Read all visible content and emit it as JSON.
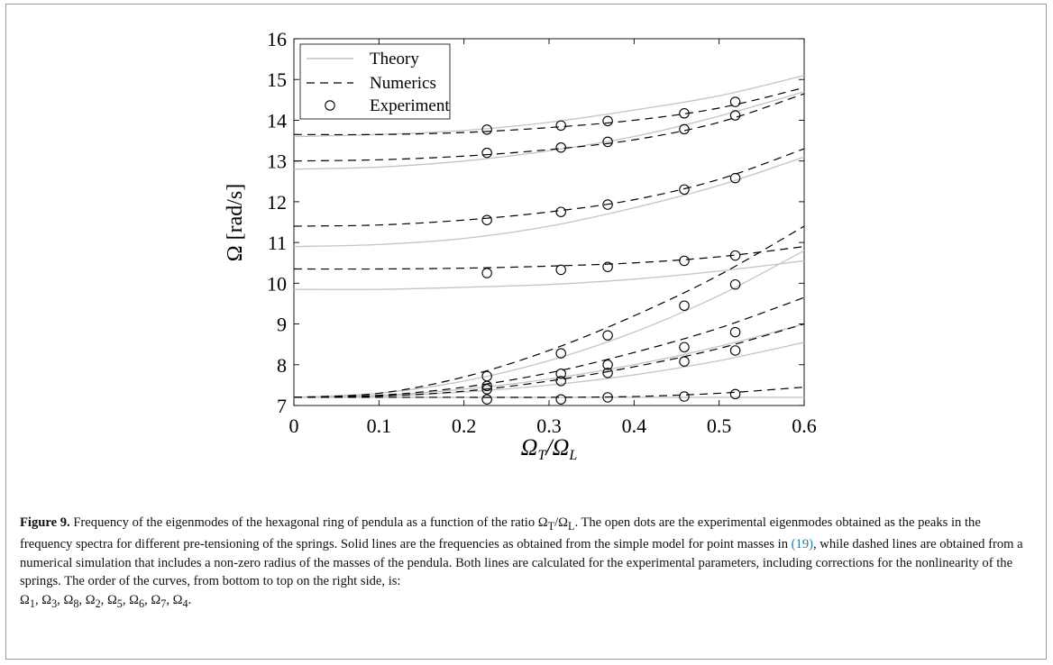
{
  "chart_data": {
    "type": "line",
    "xlabel": "Ω_T/Ω_L",
    "ylabel": "Ω [rad/s]",
    "xlim": [
      0,
      0.6
    ],
    "ylim": [
      7,
      16
    ],
    "xticks": [
      0,
      0.1,
      0.2,
      0.3,
      0.4,
      0.5,
      0.6
    ],
    "yticks": [
      7,
      8,
      9,
      10,
      11,
      12,
      13,
      14,
      15,
      16
    ],
    "grid": false,
    "legend_position": "top-left",
    "legend": [
      {
        "label": "Theory",
        "style": "solid",
        "color": "#c4c4c4"
      },
      {
        "label": "Numerics",
        "style": "dashed",
        "color": "#000000"
      },
      {
        "label": "Experiment",
        "style": "circle",
        "color": "#000000"
      }
    ],
    "theory_curves": [
      {
        "x": [
          0,
          0.1,
          0.2,
          0.3,
          0.4,
          0.5,
          0.6
        ],
        "y": [
          7.2,
          7.2,
          7.2,
          7.2,
          7.2,
          7.2,
          7.2
        ]
      },
      {
        "x": [
          0,
          0.1,
          0.2,
          0.3,
          0.4,
          0.5,
          0.6
        ],
        "y": [
          7.2,
          7.23,
          7.33,
          7.5,
          7.75,
          8.1,
          8.55
        ]
      },
      {
        "x": [
          0,
          0.1,
          0.2,
          0.3,
          0.4,
          0.5,
          0.6
        ],
        "y": [
          7.2,
          7.25,
          7.4,
          7.65,
          8.0,
          8.45,
          9.0
        ]
      },
      {
        "x": [
          0,
          0.1,
          0.2,
          0.3,
          0.4,
          0.5,
          0.6
        ],
        "y": [
          7.2,
          7.3,
          7.6,
          8.1,
          8.8,
          9.7,
          10.8
        ]
      },
      {
        "x": [
          0,
          0.1,
          0.2,
          0.3,
          0.4,
          0.5,
          0.6
        ],
        "y": [
          9.85,
          9.85,
          9.9,
          9.97,
          10.1,
          10.3,
          10.55
        ]
      },
      {
        "x": [
          0,
          0.1,
          0.2,
          0.3,
          0.4,
          0.5,
          0.6
        ],
        "y": [
          10.9,
          10.95,
          11.1,
          11.4,
          11.85,
          12.4,
          13.1
        ]
      },
      {
        "x": [
          0,
          0.1,
          0.2,
          0.3,
          0.4,
          0.5,
          0.6
        ],
        "y": [
          12.8,
          12.85,
          13.0,
          13.25,
          13.6,
          14.1,
          14.7
        ]
      },
      {
        "x": [
          0,
          0.1,
          0.2,
          0.3,
          0.4,
          0.5,
          0.6
        ],
        "y": [
          13.6,
          13.65,
          13.75,
          13.95,
          14.25,
          14.6,
          15.1
        ]
      }
    ],
    "numerics_curves": [
      {
        "x": [
          0,
          0.1,
          0.2,
          0.3,
          0.4,
          0.5,
          0.6
        ],
        "y": [
          7.2,
          7.2,
          7.2,
          7.2,
          7.22,
          7.3,
          7.45
        ]
      },
      {
        "x": [
          0,
          0.1,
          0.2,
          0.3,
          0.4,
          0.5,
          0.6
        ],
        "y": [
          7.2,
          7.23,
          7.35,
          7.6,
          7.95,
          8.4,
          9.0
        ]
      },
      {
        "x": [
          0,
          0.1,
          0.2,
          0.3,
          0.4,
          0.5,
          0.6
        ],
        "y": [
          7.2,
          7.25,
          7.45,
          7.8,
          8.3,
          8.9,
          9.65
        ]
      },
      {
        "x": [
          0,
          0.1,
          0.2,
          0.3,
          0.4,
          0.5,
          0.6
        ],
        "y": [
          7.2,
          7.3,
          7.7,
          8.35,
          9.2,
          10.2,
          11.4
        ]
      },
      {
        "x": [
          0,
          0.1,
          0.2,
          0.3,
          0.4,
          0.5,
          0.6
        ],
        "y": [
          10.35,
          10.35,
          10.37,
          10.42,
          10.5,
          10.65,
          10.9
        ]
      },
      {
        "x": [
          0,
          0.1,
          0.2,
          0.3,
          0.4,
          0.5,
          0.6
        ],
        "y": [
          11.4,
          11.43,
          11.55,
          11.75,
          12.05,
          12.55,
          13.3
        ]
      },
      {
        "x": [
          0,
          0.1,
          0.2,
          0.3,
          0.4,
          0.5,
          0.6
        ],
        "y": [
          13.0,
          13.03,
          13.12,
          13.28,
          13.52,
          13.95,
          14.65
        ]
      },
      {
        "x": [
          0,
          0.1,
          0.2,
          0.3,
          0.4,
          0.5,
          0.6
        ],
        "y": [
          13.65,
          13.65,
          13.7,
          13.82,
          14.0,
          14.3,
          14.8
        ]
      }
    ],
    "experiment": {
      "x": [
        0.227,
        0.314,
        0.369,
        0.459,
        0.519
      ],
      "y_sets": [
        [
          7.15,
          7.15,
          7.2,
          7.22,
          7.28
        ],
        [
          7.4,
          7.6,
          7.8,
          8.08,
          8.35
        ],
        [
          7.48,
          7.78,
          8.0,
          8.43,
          8.8
        ],
        [
          7.72,
          8.28,
          8.72,
          9.45,
          9.97
        ],
        [
          10.25,
          10.33,
          10.4,
          10.55,
          10.68
        ],
        [
          11.55,
          11.75,
          11.93,
          12.3,
          12.58
        ],
        [
          13.2,
          13.33,
          13.47,
          13.78,
          14.12
        ],
        [
          13.77,
          13.87,
          13.98,
          14.17,
          14.45
        ]
      ]
    }
  },
  "caption": {
    "label": "Figure 9.",
    "part1": " Frequency of the eigenmodes of the hexagonal ring of pendula as a function of the ratio Ω",
    "part1_sub1": "T",
    "part1_mid": "/Ω",
    "part1_sub2": "L",
    "part2": ". The open dots are the experimental eigenmodes obtained as the peaks in the frequency spectra for different pre-tensioning of the springs. Solid lines are the frequencies as obtained from the simple model for point masses in ",
    "ref": "(19)",
    "part3": ", while dashed lines are obtained from a numerical simulation that includes a non-zero radius of the masses of the pendula. Both lines are calculated for the experimental parameters, including corrections for the nonlinearity of the springs. The order of the curves, from bottom to top on the right side, is:",
    "order_list": "Ω1, Ω3, Ω8, Ω2, Ω5, Ω6, Ω7, Ω4."
  }
}
